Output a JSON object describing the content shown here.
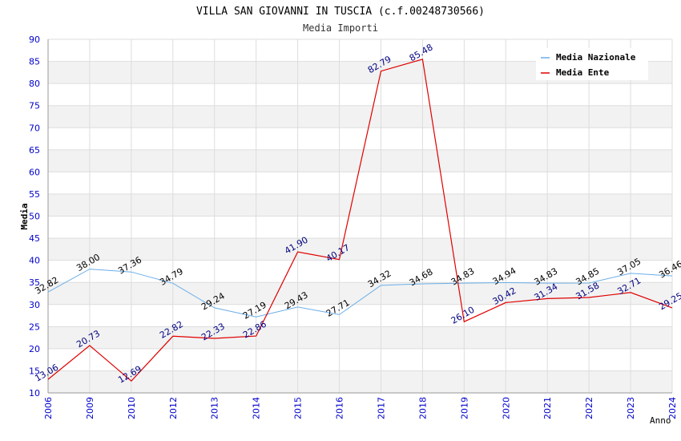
{
  "chart_data": {
    "type": "line",
    "title": "VILLA SAN GIOVANNI IN TUSCIA (c.f.00248730566)",
    "subtitle": "Media Importi",
    "xlabel": "Anno",
    "ylabel": "Media",
    "ylim": [
      10,
      90
    ],
    "yticks": [
      "10",
      "15",
      "20",
      "25",
      "30",
      "35",
      "40",
      "45",
      "50",
      "55",
      "60",
      "65",
      "70",
      "75",
      "80",
      "85",
      "90"
    ],
    "categories": [
      "2006",
      "2009",
      "2010",
      "2012",
      "2013",
      "2014",
      "2015",
      "2016",
      "2017",
      "2018",
      "2019",
      "2020",
      "2021",
      "2022",
      "2023",
      "2024"
    ],
    "grid": true,
    "legend_position": "top-right",
    "series": [
      {
        "name": "Media Nazionale",
        "color": "#6aaee8",
        "label_color": "#000000",
        "values": [
          32.82,
          38.0,
          37.36,
          34.79,
          29.24,
          27.19,
          29.43,
          27.71,
          34.32,
          34.68,
          34.83,
          34.94,
          34.83,
          34.85,
          37.05,
          36.46
        ],
        "labels": [
          "32.82",
          "38.00",
          "37.36",
          "34.79",
          "29.24",
          "27.19",
          "29.43",
          "27.71",
          "34.32",
          "34.68",
          "34.83",
          "34.94",
          "34.83",
          "34.85",
          "37.05",
          "36.46"
        ]
      },
      {
        "name": "Media Ente",
        "color": "#e00000",
        "label_color": "#000080",
        "values": [
          13.06,
          20.73,
          12.69,
          22.82,
          22.33,
          22.86,
          41.9,
          40.17,
          82.79,
          85.48,
          26.1,
          30.42,
          31.34,
          31.58,
          32.71,
          29.25
        ],
        "labels": [
          "13.06",
          "20.73",
          "12.69",
          "22.82",
          "22.33",
          "22.86",
          "41.90",
          "40.17",
          "82.79",
          "85.48",
          "26.10",
          "30.42",
          "31.34",
          "31.58",
          "32.71",
          "29.25"
        ]
      }
    ]
  }
}
